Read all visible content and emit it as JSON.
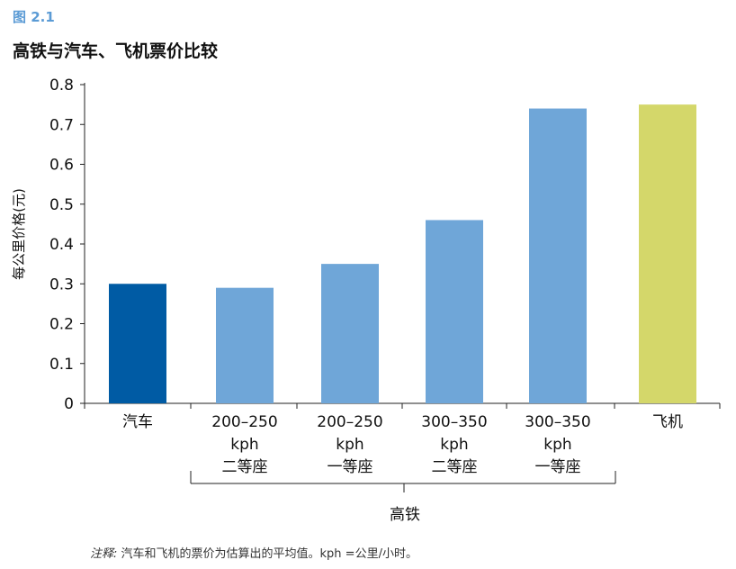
{
  "figure": {
    "label": "图 2.1",
    "title": "高铁与汽车、飞机票价比较",
    "note_label": "注释:",
    "note_text": "汽车和飞机的票价为估算出的平均值。kph =公里/小时。"
  },
  "chart_data": {
    "type": "bar",
    "ylabel": "每公里价格(元)",
    "ylim": [
      0,
      0.8
    ],
    "yticks": [
      "0",
      "0.1",
      "0.2",
      "0.3",
      "0.4",
      "0.5",
      "0.6",
      "0.7",
      "0.8"
    ],
    "categories": [
      {
        "lines": [
          "汽车"
        ],
        "value": 0.3,
        "color": "#005ba4"
      },
      {
        "lines": [
          "200–250",
          "kph",
          "二等座"
        ],
        "value": 0.29,
        "color": "#6fa6d8"
      },
      {
        "lines": [
          "200–250",
          "kph",
          "一等座"
        ],
        "value": 0.35,
        "color": "#6fa6d8"
      },
      {
        "lines": [
          "300–350",
          "kph",
          "二等座"
        ],
        "value": 0.46,
        "color": "#6fa6d8"
      },
      {
        "lines": [
          "300–350",
          "kph",
          "一等座"
        ],
        "value": 0.74,
        "color": "#6fa6d8"
      },
      {
        "lines": [
          "飞机"
        ],
        "value": 0.75,
        "color": "#d4d76a"
      }
    ],
    "group_label": "高铁",
    "grid": false,
    "legend": "none"
  }
}
